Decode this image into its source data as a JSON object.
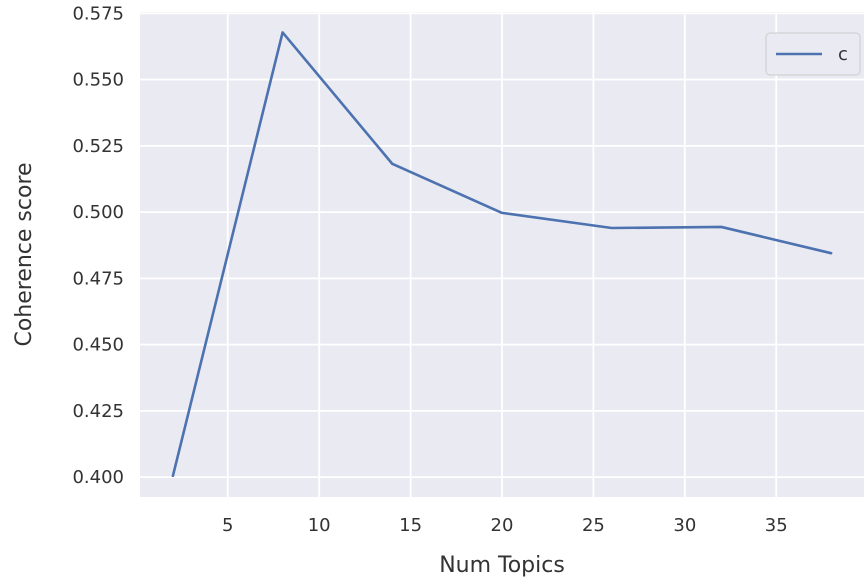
{
  "chart_data": {
    "type": "line",
    "title": "",
    "xlabel": "Num Topics",
    "ylabel": "Coherence score",
    "xlim": [
      0.2,
      39.8
    ],
    "ylim": [
      0.3925,
      0.5755
    ],
    "xticks": [
      5,
      10,
      15,
      20,
      25,
      30,
      35
    ],
    "yticks": [
      0.4,
      0.425,
      0.45,
      0.475,
      0.5,
      0.525,
      0.55,
      0.575
    ],
    "x_tick_labels": [
      "5",
      "10",
      "15",
      "20",
      "25",
      "30",
      "35"
    ],
    "y_tick_labels": [
      "0.400",
      "0.425",
      "0.450",
      "0.475",
      "0.500",
      "0.525",
      "0.550",
      "0.575"
    ],
    "grid": true,
    "legend_position": "top-right",
    "background_color": "#eaeaf2",
    "grid_color": "#ffffff",
    "series": [
      {
        "name": "c",
        "color": "#4c72b0",
        "x": [
          2,
          8,
          14,
          20,
          26,
          32,
          38
        ],
        "y": [
          0.4005,
          0.5678,
          0.5182,
          0.4997,
          0.494,
          0.4944,
          0.4845
        ]
      }
    ]
  }
}
